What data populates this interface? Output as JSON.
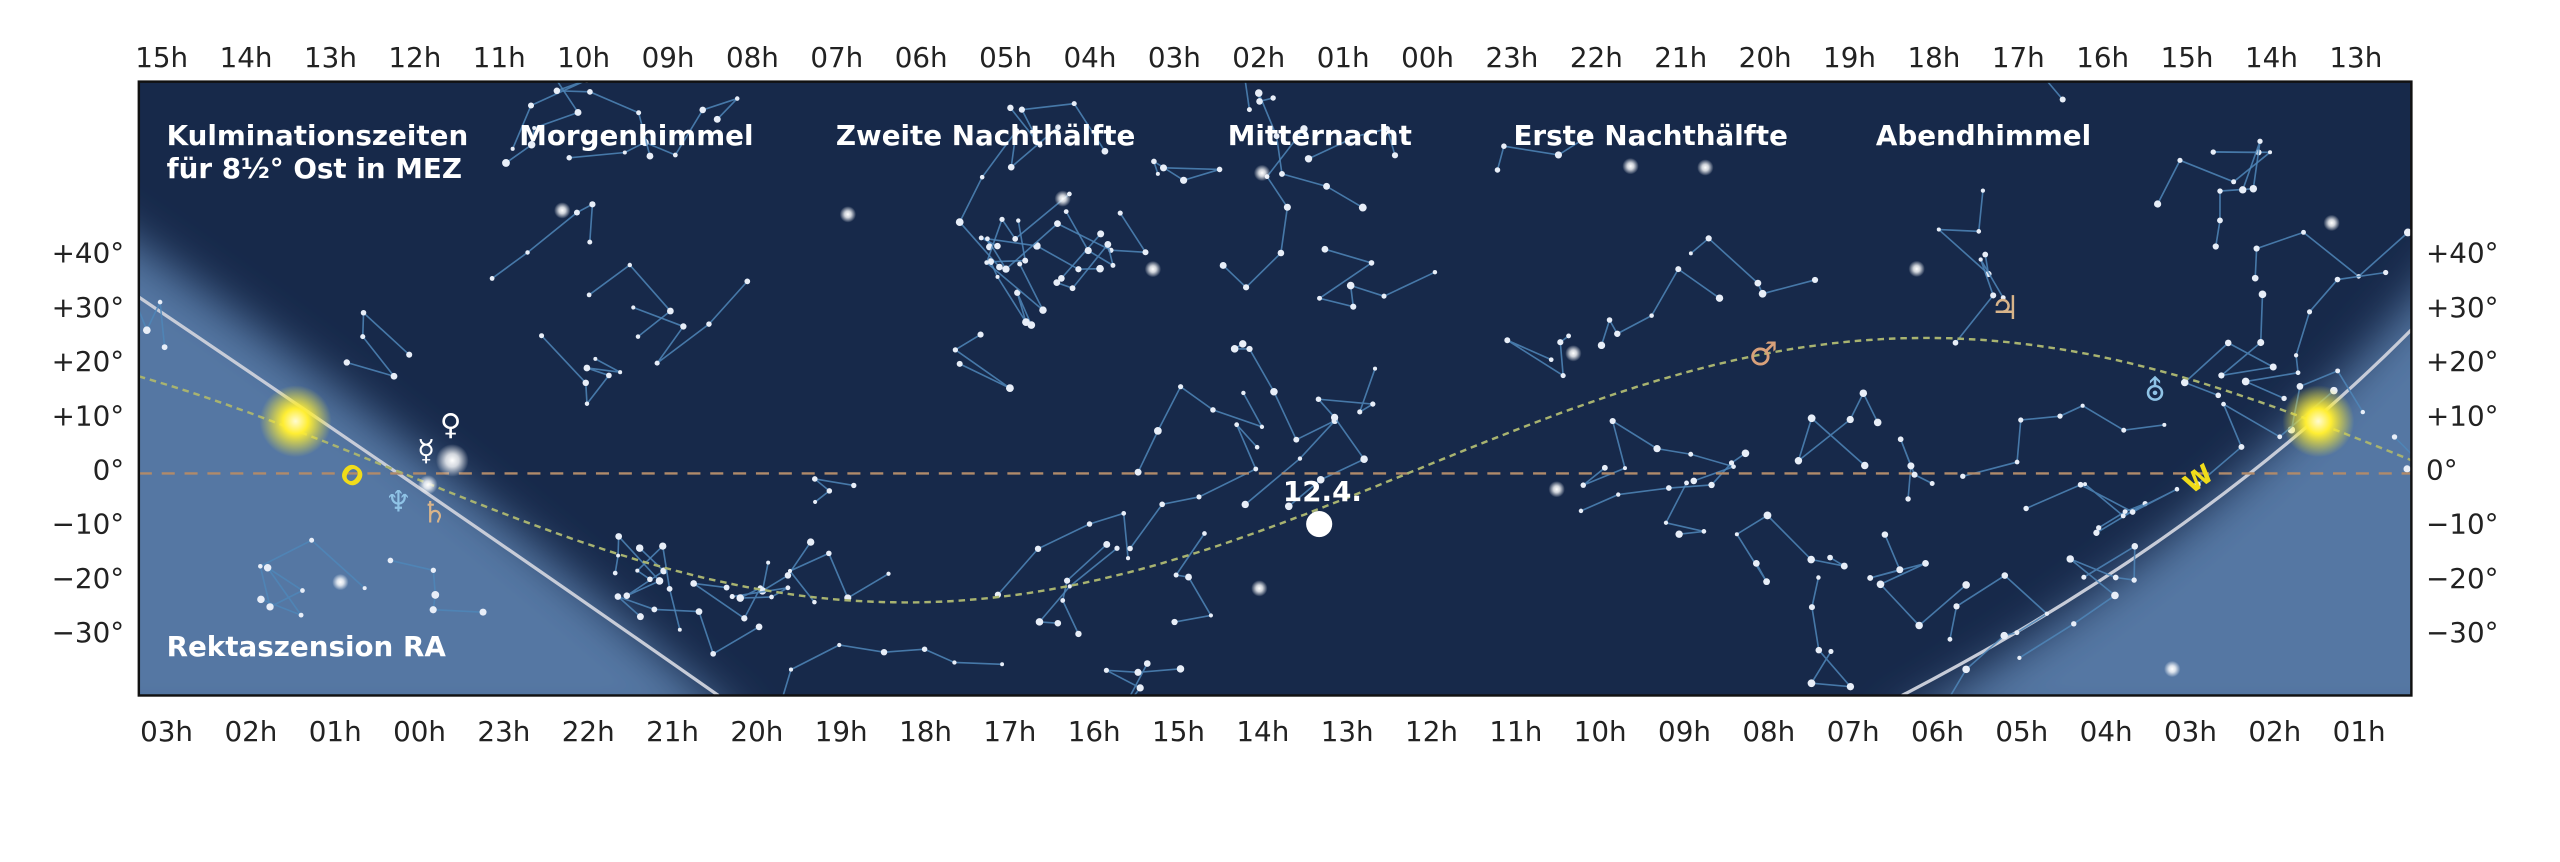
{
  "top_hours": [
    "15h",
    "14h",
    "13h",
    "12h",
    "11h",
    "10h",
    "09h",
    "08h",
    "07h",
    "06h",
    "05h",
    "04h",
    "03h",
    "02h",
    "01h",
    "00h",
    "23h",
    "22h",
    "21h",
    "20h",
    "19h",
    "18h",
    "17h",
    "16h",
    "15h",
    "14h",
    "13h"
  ],
  "bottom_hours": [
    "03h",
    "02h",
    "01h",
    "00h",
    "23h",
    "22h",
    "21h",
    "20h",
    "19h",
    "18h",
    "17h",
    "16h",
    "15h",
    "14h",
    "13h",
    "12h",
    "11h",
    "10h",
    "09h",
    "08h",
    "07h",
    "06h",
    "05h",
    "04h",
    "03h",
    "02h",
    "01h"
  ],
  "declinations": [
    "+40°",
    "+30°",
    "+20°",
    "+10°",
    "0°",
    "−10°",
    "−20°",
    "−30°"
  ],
  "regions": {
    "culmination_line1": "Kulminationszeiten",
    "culmination_line2": "für 8½° Ost in MEZ",
    "morning": "Morgenhimmel",
    "second_half": "Zweite Nachthälfte",
    "midnight": "Mitternacht",
    "first_half": "Erste Nachthälfte",
    "evening": "Abendhimmel"
  },
  "axis_label": "Rektaszension RA",
  "moon_date": "12.4.",
  "east": "O",
  "west": "W",
  "planets": {
    "venus": "♀",
    "mercury": "☿",
    "neptune": "♆",
    "saturn": "♄",
    "mars": "♂",
    "jupiter": "♃",
    "uranus": "⛢"
  }
}
